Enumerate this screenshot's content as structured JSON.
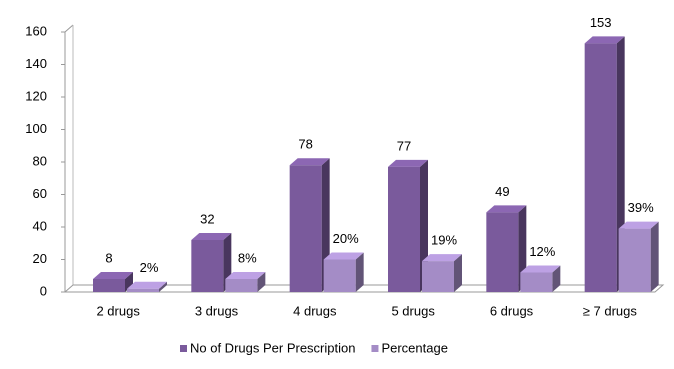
{
  "chart_data": {
    "type": "bar3d",
    "categories": [
      "2 drugs",
      "3 drugs",
      "4 drugs",
      "5 drugs",
      "6 drugs",
      "≥ 7 drugs"
    ],
    "series": [
      {
        "name": "No of Drugs Per Prescription",
        "color": "#7a5a9c",
        "values": [
          8,
          32,
          78,
          77,
          49,
          153
        ]
      },
      {
        "name": "Percentage",
        "color": "#a48cc6",
        "values": [
          2,
          8,
          20,
          19,
          12,
          39
        ],
        "value_labels": [
          "2%",
          "8%",
          "20%",
          "19%",
          "12%",
          "39%"
        ]
      }
    ],
    "ylim": [
      0,
      160
    ],
    "yticks": [
      0,
      20,
      40,
      60,
      80,
      100,
      120,
      140,
      160
    ],
    "legend": "bottom"
  }
}
